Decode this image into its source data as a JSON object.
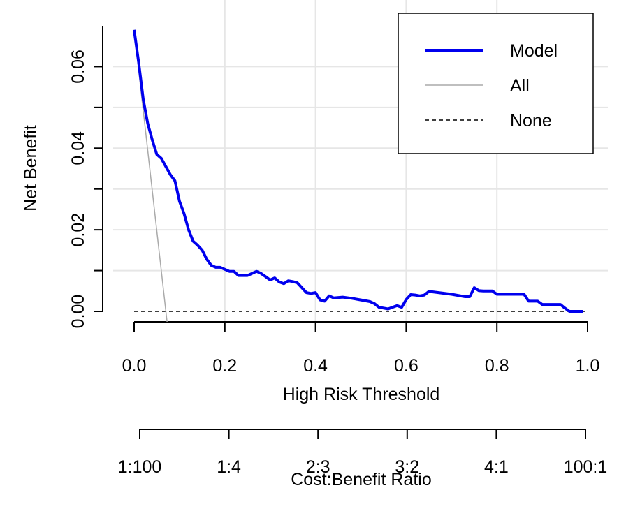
{
  "chart_data": {
    "type": "line",
    "title": "",
    "xlabel": "High Risk Threshold",
    "ylabel": "Net Benefit",
    "xlim": [
      0,
      1
    ],
    "ylim": [
      0,
      0.07
    ],
    "grid": true,
    "legend_position": "top-right",
    "x_ticks": [
      "0.0",
      "0.2",
      "0.4",
      "0.6",
      "0.8",
      "1.0"
    ],
    "y_ticks": [
      "0.00",
      "0.02",
      "0.04",
      "0.06"
    ],
    "secondary_axis": {
      "label": "Cost:Benefit Ratio",
      "ticks": [
        "1:100",
        "1:4",
        "2:3",
        "3:2",
        "4:1",
        "100:1"
      ]
    },
    "series": [
      {
        "name": "Model",
        "color": "#0000ee",
        "style": "solid-thick",
        "x": [
          0.0,
          0.01,
          0.02,
          0.03,
          0.04,
          0.05,
          0.06,
          0.07,
          0.08,
          0.09,
          0.1,
          0.11,
          0.12,
          0.13,
          0.14,
          0.15,
          0.16,
          0.17,
          0.18,
          0.19,
          0.2,
          0.21,
          0.22,
          0.23,
          0.24,
          0.25,
          0.26,
          0.27,
          0.28,
          0.29,
          0.3,
          0.31,
          0.32,
          0.33,
          0.34,
          0.35,
          0.36,
          0.37,
          0.38,
          0.39,
          0.4,
          0.41,
          0.42,
          0.43,
          0.44,
          0.46,
          0.48,
          0.5,
          0.52,
          0.53,
          0.54,
          0.55,
          0.56,
          0.58,
          0.59,
          0.6,
          0.61,
          0.62,
          0.63,
          0.64,
          0.65,
          0.7,
          0.73,
          0.74,
          0.75,
          0.76,
          0.77,
          0.78,
          0.79,
          0.8,
          0.82,
          0.84,
          0.86,
          0.87,
          0.88,
          0.89,
          0.9,
          0.91,
          0.92,
          0.93,
          0.94,
          0.95,
          0.96,
          0.97,
          0.98,
          0.99
        ],
        "y": [
          0.069,
          0.061,
          0.052,
          0.046,
          0.042,
          0.0385,
          0.0375,
          0.0355,
          0.0335,
          0.032,
          0.027,
          0.024,
          0.02,
          0.0172,
          0.0162,
          0.015,
          0.0128,
          0.0113,
          0.0108,
          0.0108,
          0.0103,
          0.0098,
          0.0098,
          0.0088,
          0.0088,
          0.0088,
          0.0093,
          0.0098,
          0.0093,
          0.0085,
          0.0077,
          0.0082,
          0.0072,
          0.0068,
          0.0075,
          0.0073,
          0.007,
          0.0058,
          0.0046,
          0.0044,
          0.0046,
          0.0028,
          0.0025,
          0.0038,
          0.0033,
          0.0035,
          0.0032,
          0.0028,
          0.0024,
          0.0019,
          0.001,
          0.0008,
          0.0006,
          0.0014,
          0.001,
          0.0029,
          0.0041,
          0.004,
          0.0038,
          0.004,
          0.0049,
          0.0042,
          0.0036,
          0.0036,
          0.0058,
          0.0051,
          0.005,
          0.005,
          0.005,
          0.0042,
          0.0042,
          0.0042,
          0.0042,
          0.0025,
          0.0025,
          0.0025,
          0.0017,
          0.0017,
          0.0017,
          0.0017,
          0.0017,
          0.0008,
          0.0,
          0.0,
          0.0,
          0.0
        ]
      },
      {
        "name": "All",
        "color": "#aaaaaa",
        "style": "solid-thin",
        "x": [
          0.0,
          0.073
        ],
        "y": [
          0.069,
          -0.003
        ]
      },
      {
        "name": "None",
        "color": "#000000",
        "style": "dashed",
        "x": [
          0.0,
          1.0
        ],
        "y": [
          0.0,
          0.0
        ]
      }
    ]
  }
}
